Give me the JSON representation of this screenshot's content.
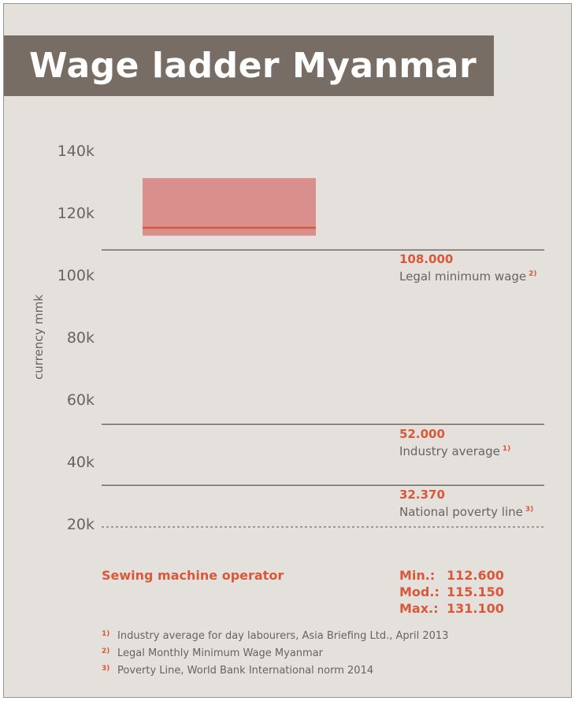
{
  "title": "Wage ladder Myanmar",
  "chart_data": {
    "type": "boxplot",
    "title": "Wage ladder Myanmar",
    "ylabel": "currency mmk",
    "ylim": [
      20000,
      145000
    ],
    "yticks": [
      140000,
      120000,
      100000,
      80000,
      60000,
      40000,
      20000
    ],
    "ytick_labels": [
      "140k",
      "120k",
      "100k",
      "80k",
      "60k",
      "40k",
      "20k"
    ],
    "grid": false,
    "series": [
      {
        "name": "Sewing machine operator",
        "min": 112600,
        "mode": 115150,
        "max": 131100,
        "color": "#d98f8c",
        "mode_color": "#d9583a"
      }
    ],
    "reference_lines": [
      {
        "value": 108000,
        "value_label": "108.000",
        "label": "Legal minimum wage",
        "note": "2)"
      },
      {
        "value": 52000,
        "value_label": "52.000",
        "label": "Industry average",
        "note": "1)"
      },
      {
        "value": 32370,
        "value_label": "32.370",
        "label": "National poverty line",
        "note": "3)"
      }
    ]
  },
  "stats": [
    {
      "key": "Min.:",
      "value": "112.600"
    },
    {
      "key": "Mod.:",
      "value": "115.150"
    },
    {
      "key": "Max.:",
      "value": "131.100"
    }
  ],
  "footnotes": [
    {
      "mark": "1)",
      "text": "Industry average for day labourers, Asia Briefing Ltd., April 2013"
    },
    {
      "mark": "2)",
      "text": "Legal Monthly Minimum Wage Myanmar"
    },
    {
      "mark": "3)",
      "text": "Poverty Line, World Bank International norm 2014"
    }
  ],
  "colors": {
    "background": "#e4e1dd",
    "title_band": "#776d65",
    "accent": "#d9583a",
    "text": "#6a625b",
    "line": "#5a524b"
  }
}
